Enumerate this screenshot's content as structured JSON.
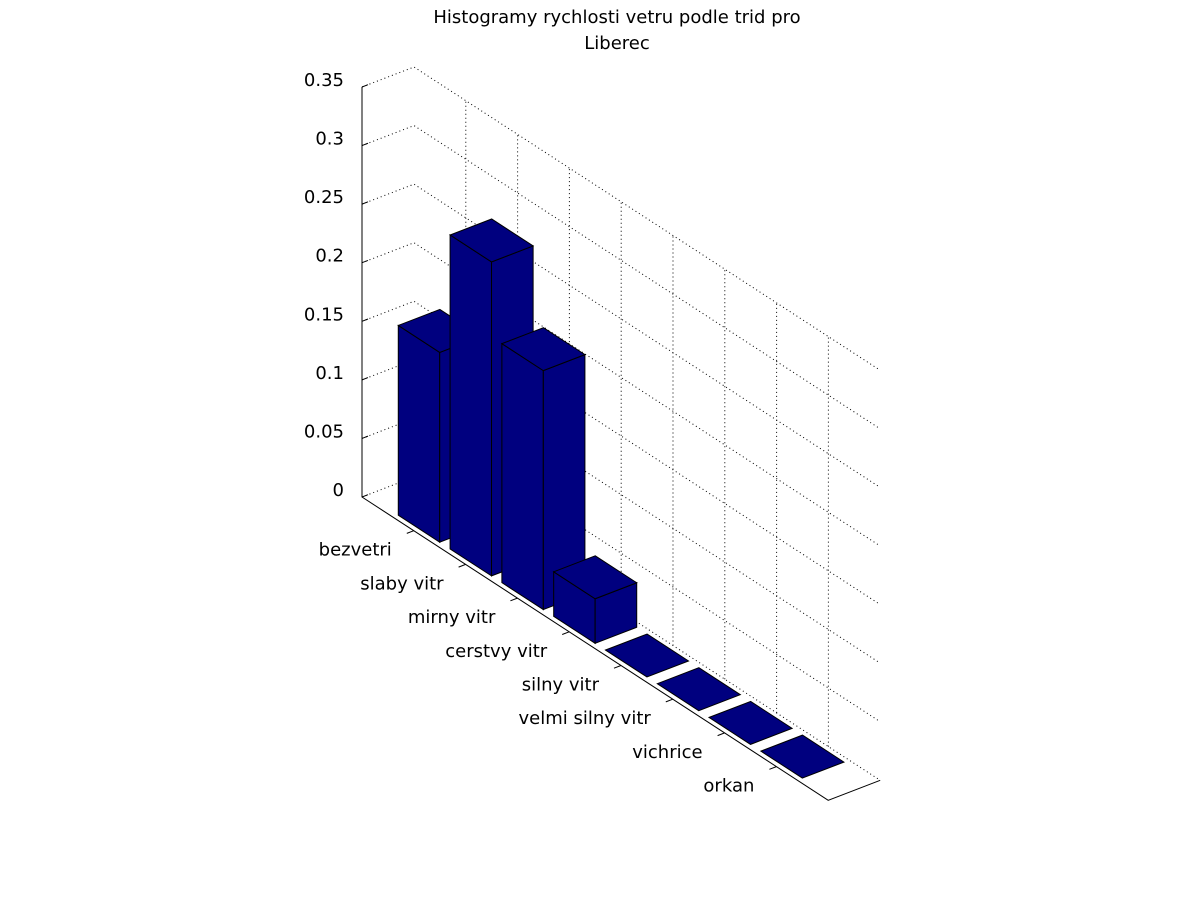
{
  "chart_data": {
    "type": "bar3",
    "title": [
      "Histogramy rychlosti vetru podle trid pro",
      "Liberec"
    ],
    "categories": [
      "bezvetri",
      "slaby vitr",
      "mirny vitr",
      "cerstvy vitr",
      "silny vitr",
      "velmi silny vitr",
      "vichrice",
      "orkan"
    ],
    "values": [
      0.162,
      0.268,
      0.204,
      0.038,
      0,
      0,
      0,
      0
    ],
    "color": "#00007f",
    "ylim": [
      0,
      0.35
    ],
    "yticks": [
      0,
      0.05,
      0.1,
      0.15,
      0.2,
      0.25,
      0.3,
      0.35
    ],
    "grid": true
  }
}
